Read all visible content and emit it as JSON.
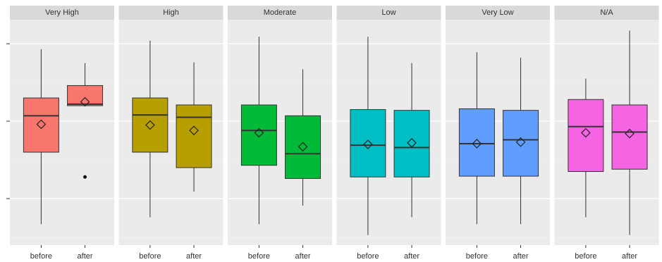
{
  "chart_data": {
    "type": "boxplot",
    "ylim": [
      0.4,
      3.31
    ],
    "yticks": [
      1,
      2,
      3
    ],
    "grid": true,
    "facets": [
      {
        "name": "Very High",
        "color": "#F8766D",
        "categories": [
          "before",
          "after"
        ],
        "boxes": [
          {
            "low": 0.67,
            "q1": 1.6,
            "median": 2.07,
            "q3": 2.3,
            "high": 2.93,
            "mean": 1.96,
            "outliers": []
          },
          {
            "low": 2.2,
            "q1": 2.2,
            "median": 2.22,
            "q3": 2.46,
            "high": 2.75,
            "mean": 2.25,
            "outliers": [
              1.28
            ]
          }
        ]
      },
      {
        "name": "High",
        "color": "#B79F00",
        "categories": [
          "before",
          "after"
        ],
        "boxes": [
          {
            "low": 0.76,
            "q1": 1.6,
            "median": 2.08,
            "q3": 2.3,
            "high": 3.04,
            "mean": 1.95,
            "outliers": []
          },
          {
            "low": 1.09,
            "q1": 1.4,
            "median": 2.05,
            "q3": 2.21,
            "high": 2.76,
            "mean": 1.88,
            "outliers": []
          }
        ]
      },
      {
        "name": "Moderate",
        "color": "#00BA38",
        "categories": [
          "before",
          "after"
        ],
        "boxes": [
          {
            "low": 0.67,
            "q1": 1.43,
            "median": 1.88,
            "q3": 2.21,
            "high": 3.09,
            "mean": 1.85,
            "outliers": []
          },
          {
            "low": 0.91,
            "q1": 1.26,
            "median": 1.58,
            "q3": 2.07,
            "high": 2.67,
            "mean": 1.67,
            "outliers": []
          }
        ]
      },
      {
        "name": "Low",
        "color": "#00BFC4",
        "categories": [
          "before",
          "after"
        ],
        "boxes": [
          {
            "low": 0.53,
            "q1": 1.28,
            "median": 1.69,
            "q3": 2.15,
            "high": 3.09,
            "mean": 1.7,
            "outliers": []
          },
          {
            "low": 0.76,
            "q1": 1.28,
            "median": 1.66,
            "q3": 2.14,
            "high": 2.75,
            "mean": 1.72,
            "outliers": []
          }
        ]
      },
      {
        "name": "Very Low",
        "color": "#619CFF",
        "categories": [
          "before",
          "after"
        ],
        "boxes": [
          {
            "low": 0.67,
            "q1": 1.29,
            "median": 1.71,
            "q3": 2.16,
            "high": 2.89,
            "mean": 1.71,
            "outliers": []
          },
          {
            "low": 0.67,
            "q1": 1.29,
            "median": 1.76,
            "q3": 2.14,
            "high": 2.82,
            "mean": 1.73,
            "outliers": []
          }
        ]
      },
      {
        "name": "N/A",
        "color": "#F564E3",
        "categories": [
          "before",
          "after"
        ],
        "boxes": [
          {
            "low": 0.76,
            "q1": 1.35,
            "median": 1.93,
            "q3": 2.28,
            "high": 2.55,
            "mean": 1.85,
            "outliers": []
          },
          {
            "low": 0.53,
            "q1": 1.38,
            "median": 1.86,
            "q3": 2.21,
            "high": 3.17,
            "mean": 1.84,
            "outliers": []
          }
        ]
      }
    ]
  }
}
